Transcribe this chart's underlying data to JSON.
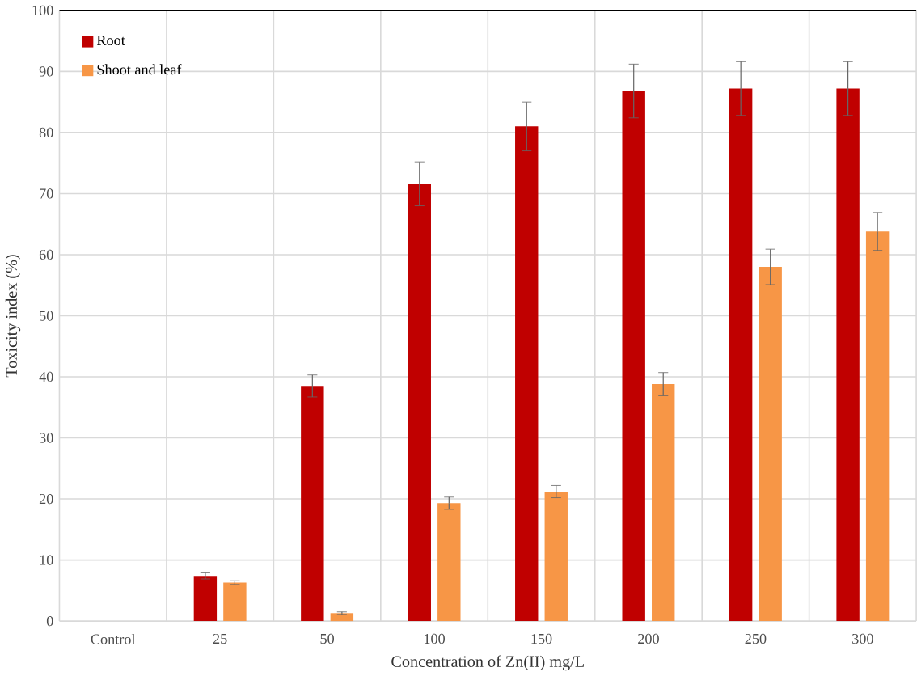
{
  "chart_data": {
    "type": "bar",
    "xlabel": "Concentration of Zn(II) mg/L",
    "ylabel": "Toxicity index (%)",
    "categories": [
      "Control",
      "25",
      "50",
      "100",
      "150",
      "200",
      "250",
      "300"
    ],
    "series": [
      {
        "name": "Root",
        "color": "#c00000",
        "values": [
          0,
          7.4,
          38.5,
          71.6,
          81,
          86.8,
          87.2,
          87.2
        ],
        "errors": [
          null,
          0.5,
          1.8,
          3.6,
          4,
          4.4,
          4.4,
          4.4
        ]
      },
      {
        "name": "Shoot and leaf",
        "color": "#f79646",
        "values": [
          0,
          6.3,
          1.3,
          19.3,
          21.2,
          38.8,
          58,
          63.8
        ],
        "errors": [
          null,
          0.3,
          0.2,
          1,
          1,
          1.9,
          2.9,
          3.1
        ]
      }
    ],
    "ylim": [
      0,
      100
    ],
    "yticks": [
      0,
      10,
      20,
      30,
      40,
      50,
      60,
      70,
      80,
      90,
      100
    ],
    "grid": true,
    "legend": "top left"
  }
}
